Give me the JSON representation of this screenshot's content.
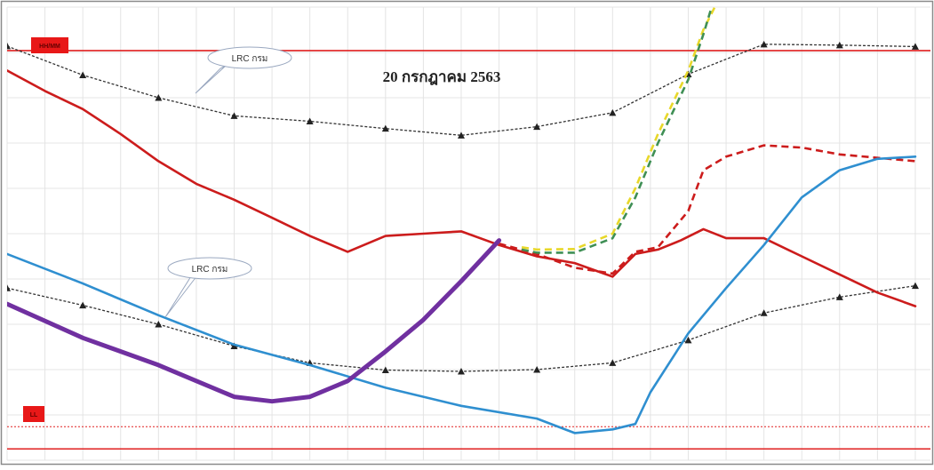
{
  "chart_data": {
    "type": "line",
    "title": "20 กรกฎาคม 2563",
    "xlabel": "",
    "ylabel": "",
    "x_hours": [
      0,
      1,
      2,
      3,
      4,
      5,
      6,
      7,
      8,
      9,
      10,
      11,
      12
    ],
    "xlim": [
      0,
      12.2
    ],
    "ylim": [
      0,
      100
    ],
    "grid": true,
    "legend": "none",
    "colors": {
      "red": "#cc1c1c",
      "blue": "#2f8fd0",
      "purple": "#7030a0",
      "yellow": "#e8d82a",
      "green": "#3f8f55",
      "gray": "#666666",
      "grid": "#e4e4e4",
      "limit": "#e02020"
    },
    "limits": {
      "upper": {
        "y": 90.4,
        "tag": "HH/MM"
      },
      "lower": {
        "y": 2.5,
        "tag": "LL"
      },
      "lower_dotted": {
        "y": 7.4
      }
    },
    "lrc_upper": {
      "label": "LRC กรม",
      "x": [
        0,
        1,
        2,
        3,
        4,
        5,
        6,
        7,
        8,
        9,
        10,
        11,
        12
      ],
      "y": [
        91.4,
        85.0,
        80.0,
        76.0,
        74.8,
        73.2,
        71.7,
        73.6,
        76.7,
        85.2,
        91.8,
        91.6,
        91.3
      ]
    },
    "lrc_lower": {
      "label": "LRC กรม",
      "x": [
        0,
        1,
        2,
        3,
        4,
        5,
        6,
        7,
        8,
        9,
        10,
        11,
        12
      ],
      "y": [
        38.0,
        34.2,
        30.0,
        25.2,
        21.5,
        19.9,
        19.6,
        20.0,
        21.5,
        26.5,
        32.5,
        36.0,
        38.5
      ]
    },
    "series": [
      {
        "style": "solid",
        "color": "red",
        "x": [
          0,
          0.5,
          1,
          1.5,
          2,
          2.5,
          3,
          3.5,
          4,
          4.5,
          5,
          5.5,
          6,
          6.5,
          7,
          7.5,
          8,
          8.3,
          8.6,
          8.9,
          9.2,
          9.5,
          10,
          10.5,
          11,
          11.5,
          12
        ],
        "y": [
          86.0,
          81.5,
          77.5,
          72.0,
          66.0,
          61.0,
          57.5,
          53.5,
          49.5,
          46.0,
          49.5,
          50.0,
          50.5,
          47.5,
          45.0,
          43.5,
          40.5,
          45.5,
          46.5,
          48.5,
          51.0,
          49.0,
          49.0,
          45.0,
          41.0,
          37.0,
          34.0
        ]
      },
      {
        "style": "dashed",
        "color": "red",
        "x": [
          6.5,
          7,
          7.5,
          8,
          8.3,
          8.6,
          9,
          9.2,
          9.5,
          10,
          10.5,
          11,
          12
        ],
        "y": [
          47.8,
          45.5,
          42.5,
          41.2,
          46.0,
          47.0,
          55.0,
          64.0,
          67.0,
          69.5,
          69.0,
          67.5,
          66.0
        ]
      },
      {
        "style": "solid",
        "color": "blue",
        "x": [
          0,
          1,
          2,
          3,
          4,
          5,
          6,
          7,
          7.5,
          8,
          8.3,
          8.5,
          9,
          9.5,
          10,
          10.5,
          11,
          11.5,
          12
        ],
        "y": [
          45.5,
          39.0,
          32.0,
          25.5,
          21.0,
          16.0,
          12.0,
          9.2,
          6.0,
          6.8,
          8.0,
          15.0,
          28.0,
          38.0,
          47.5,
          58.0,
          64.0,
          66.5,
          67.0
        ]
      },
      {
        "style": "solid",
        "color": "purple",
        "x": [
          0,
          1,
          2,
          3,
          3.5,
          4,
          4.5,
          5,
          5.5,
          6,
          6.5
        ],
        "y": [
          34.5,
          27.0,
          21.0,
          14.0,
          13.0,
          14.0,
          17.5,
          24.0,
          31.0,
          39.5,
          48.5
        ]
      },
      {
        "style": "dashed",
        "color": "yellow",
        "x": [
          6.8,
          7,
          7.5,
          8,
          8.3,
          8.6,
          9,
          9.2,
          9.5
        ],
        "y": [
          47.0,
          46.5,
          46.6,
          50.0,
          60.0,
          72.0,
          86.0,
          95.0,
          105.0
        ]
      },
      {
        "style": "dashed",
        "color": "green",
        "x": [
          6.8,
          7,
          7.5,
          8,
          8.3,
          8.6,
          9,
          9.2,
          9.4
        ],
        "y": [
          46.5,
          45.8,
          45.8,
          49.0,
          58.0,
          70.0,
          84.0,
          94.0,
          105.0
        ]
      }
    ]
  }
}
